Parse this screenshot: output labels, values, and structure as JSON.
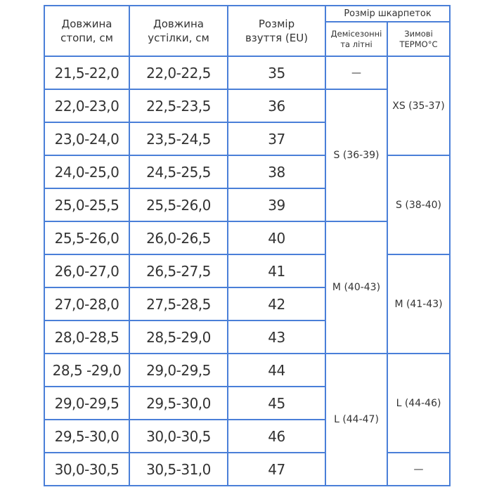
{
  "headers": {
    "foot_length": "Довжина стопи, см",
    "insole_length": "Довжина устілки, см",
    "shoe_size": "Розмір взуття (EU)",
    "sock_size": "Розмір шкарпеток",
    "demi_summer": "Демісезонні та літні",
    "winter_thermo": "Зимові ТЕРМО°C"
  },
  "rows": [
    {
      "foot": "21,5-22,0",
      "insole": "22,0-22,5",
      "eu": "35"
    },
    {
      "foot": "22,0-23,0",
      "insole": "22,5-23,5",
      "eu": "36"
    },
    {
      "foot": "23,0-24,0",
      "insole": "23,5-24,5",
      "eu": "37"
    },
    {
      "foot": "24,0-25,0",
      "insole": "24,5-25,5",
      "eu": "38"
    },
    {
      "foot": "25,0-25,5",
      "insole": "25,5-26,0",
      "eu": "39"
    },
    {
      "foot": "25,5-26,0",
      "insole": "26,0-26,5",
      "eu": "40"
    },
    {
      "foot": "26,0-27,0",
      "insole": "26,5-27,5",
      "eu": "41"
    },
    {
      "foot": "27,0-28,0",
      "insole": "27,5-28,5",
      "eu": "42"
    },
    {
      "foot": "28,0-28,5",
      "insole": "28,5-29,0",
      "eu": "43"
    },
    {
      "foot": "28,5 -29,0",
      "insole": "29,0-29,5",
      "eu": "44"
    },
    {
      "foot": "29,0-29,5",
      "insole": "29,5-30,0",
      "eu": "45"
    },
    {
      "foot": "29,5-30,0",
      "insole": "30,0-30,5",
      "eu": "46"
    },
    {
      "foot": "30,0-30,5",
      "insole": "30,5-31,0",
      "eu": "47"
    }
  ],
  "demi": [
    {
      "label": "—",
      "start": 0,
      "span": 1
    },
    {
      "label": "S (36-39)",
      "start": 1,
      "span": 4
    },
    {
      "label": "M (40-43)",
      "start": 5,
      "span": 4
    },
    {
      "label": "L (44-47)",
      "start": 9,
      "span": 4
    }
  ],
  "winter": [
    {
      "label": "XS (35-37)",
      "start": 0,
      "span": 3
    },
    {
      "label": "S (38-40)",
      "start": 3,
      "span": 3
    },
    {
      "label": "M (41-43)",
      "start": 6,
      "span": 3
    },
    {
      "label": "L (44-46)",
      "start": 9,
      "span": 3
    },
    {
      "label": "—",
      "start": 12,
      "span": 1
    }
  ]
}
